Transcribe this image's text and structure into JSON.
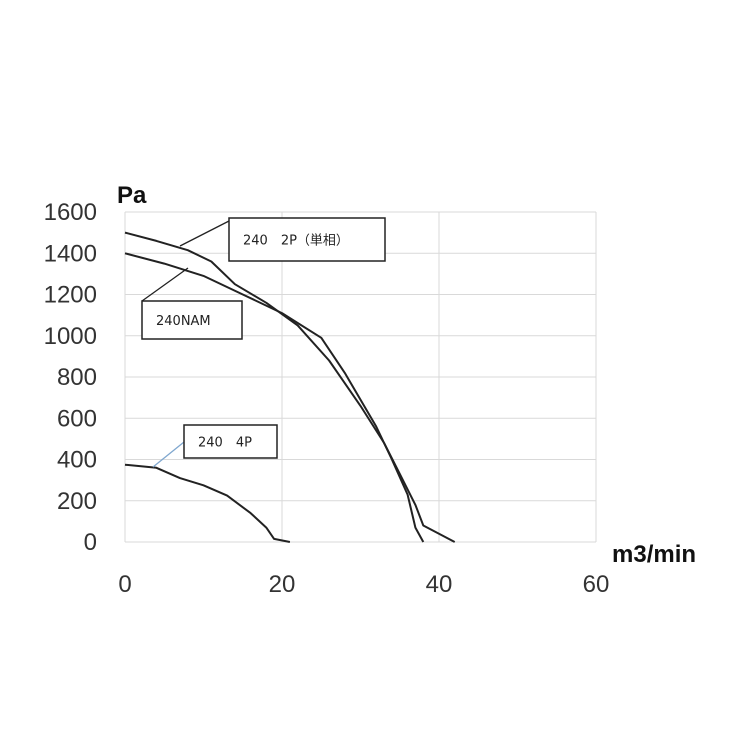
{
  "chart_data": {
    "type": "line",
    "xlabel": "m3/min",
    "ylabel": "Pa",
    "xlim": [
      0,
      60
    ],
    "ylim": [
      0,
      1600
    ],
    "xticks": [
      0,
      20,
      40,
      60
    ],
    "yticks": [
      0,
      200,
      400,
      600,
      800,
      1000,
      1200,
      1400,
      1600
    ],
    "grid": true,
    "series": [
      {
        "name": "240　2P（単相）",
        "x": [
          0,
          4,
          8,
          11,
          14,
          18,
          22,
          26,
          30,
          33,
          35,
          37,
          38,
          42
        ],
        "values": [
          1500,
          1460,
          1415,
          1360,
          1250,
          1160,
          1050,
          880,
          660,
          480,
          330,
          180,
          80,
          0
        ]
      },
      {
        "name": "240NAM",
        "x": [
          0,
          5,
          10,
          15,
          20,
          25,
          28,
          32,
          34,
          36,
          37,
          38
        ],
        "values": [
          1400,
          1350,
          1290,
          1200,
          1110,
          990,
          820,
          560,
          400,
          230,
          70,
          0
        ]
      },
      {
        "name": "240　4P",
        "x": [
          0,
          4,
          7,
          10,
          13,
          16,
          18,
          19,
          21
        ],
        "values": [
          375,
          360,
          310,
          275,
          225,
          140,
          70,
          15,
          0
        ]
      }
    ]
  }
}
